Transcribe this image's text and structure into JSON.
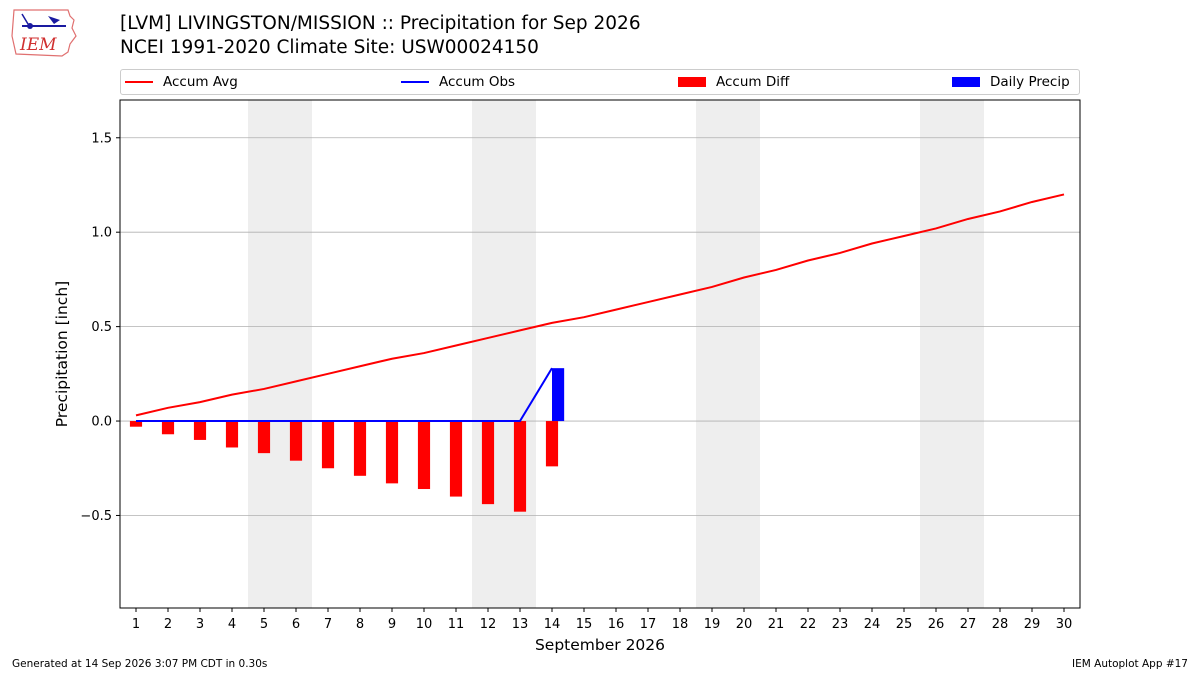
{
  "header": {
    "title": "[LVM] LIVINGSTON/MISSION :: Precipitation for Sep 2026",
    "subtitle": "NCEI 1991-2020 Climate Site: USW00024150",
    "logo_text": "IEM"
  },
  "footer": {
    "generated": "Generated at 14 Sep 2026 3:07 PM CDT in 0.30s",
    "app": "IEM Autoplot App #17"
  },
  "colors": {
    "avg": "#ff0000",
    "obs": "#0000ff",
    "diff": "#ff0000",
    "daily": "#0000ff",
    "weekend": "#eeeeee",
    "grid": "#b0b0b0"
  },
  "chart_data": {
    "type": "bar",
    "title": "[LVM] LIVINGSTON/MISSION :: Precipitation for Sep 2026",
    "xlabel": "September 2026",
    "ylabel": "Precipitation [inch]",
    "ylim": [
      -0.99,
      1.7
    ],
    "yticks": [
      -0.5,
      0.0,
      0.5,
      1.0,
      1.5
    ],
    "ytick_labels": [
      "−0.5",
      "0.0",
      "0.5",
      "1.0",
      "1.5"
    ],
    "xlim": [
      0.5,
      30.5
    ],
    "grid": "horizontal",
    "legend": {
      "placement": "top",
      "entries": [
        "Accum Avg",
        "Accum Obs",
        "Accum Diff",
        "Daily Precip"
      ]
    },
    "weekend_days": [
      5,
      6,
      12,
      13,
      19,
      20,
      26,
      27
    ],
    "days": [
      1,
      2,
      3,
      4,
      5,
      6,
      7,
      8,
      9,
      10,
      11,
      12,
      13,
      14,
      15,
      16,
      17,
      18,
      19,
      20,
      21,
      22,
      23,
      24,
      25,
      26,
      27,
      28,
      29,
      30
    ],
    "series": [
      {
        "name": "Accum Avg",
        "kind": "line",
        "values": [
          0.03,
          0.07,
          0.1,
          0.14,
          0.17,
          0.21,
          0.25,
          0.29,
          0.33,
          0.36,
          0.4,
          0.44,
          0.48,
          0.52,
          0.55,
          0.59,
          0.63,
          0.67,
          0.71,
          0.76,
          0.8,
          0.85,
          0.89,
          0.94,
          0.98,
          1.02,
          1.07,
          1.11,
          1.16,
          1.2
        ]
      },
      {
        "name": "Accum Obs",
        "kind": "line",
        "days": [
          1,
          2,
          3,
          4,
          5,
          6,
          7,
          8,
          9,
          10,
          11,
          12,
          13,
          14
        ],
        "values": [
          0,
          0,
          0,
          0,
          0,
          0,
          0,
          0,
          0,
          0,
          0,
          0,
          0,
          0.28
        ]
      },
      {
        "name": "Accum Diff",
        "kind": "bar",
        "days": [
          1,
          2,
          3,
          4,
          5,
          6,
          7,
          8,
          9,
          10,
          11,
          12,
          13,
          14
        ],
        "values": [
          -0.03,
          -0.07,
          -0.1,
          -0.14,
          -0.17,
          -0.21,
          -0.25,
          -0.29,
          -0.33,
          -0.36,
          -0.4,
          -0.44,
          -0.48,
          -0.24
        ]
      },
      {
        "name": "Daily Precip",
        "kind": "bar",
        "days": [
          14
        ],
        "values": [
          0.28
        ]
      }
    ]
  }
}
